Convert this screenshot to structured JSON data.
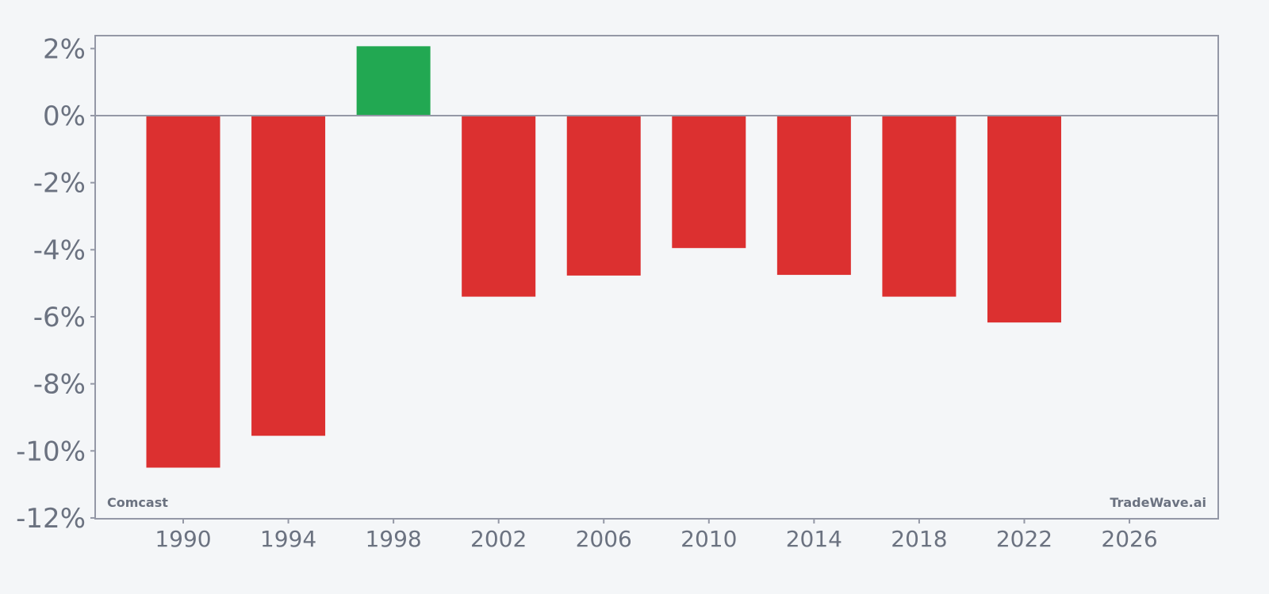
{
  "chart_data": {
    "type": "bar",
    "title": "",
    "xlabel": "",
    "ylabel": "",
    "x": [
      1990,
      1994,
      1998,
      2002,
      2006,
      2010,
      2014,
      2018,
      2022
    ],
    "values": [
      -10.5,
      -9.55,
      2.07,
      -5.4,
      -4.77,
      -3.95,
      -4.75,
      -5.4,
      -6.17
    ],
    "xlim": [
      1986.75,
      2029.5
    ],
    "ylim": [
      -12,
      2.4
    ],
    "xticks": [
      1990,
      1994,
      1998,
      2002,
      2006,
      2010,
      2014,
      2018,
      2022,
      2026
    ],
    "yticks": [
      2,
      0,
      -2,
      -4,
      -6,
      -8,
      -10,
      -12
    ],
    "ytick_labels": [
      "2%",
      "0%",
      "-2%",
      "-4%",
      "-6%",
      "-8%",
      "-10%",
      "-12%"
    ],
    "xtick_labels": [
      "1990",
      "1994",
      "1998",
      "2002",
      "2006",
      "2010",
      "2014",
      "2018",
      "2022",
      "2026"
    ],
    "grid": false,
    "annotations": {
      "company": "Comcast",
      "watermark": "TradeWave.ai"
    },
    "colors": {
      "positive": "#22a852",
      "negative": "#dc3030",
      "axis": "#9498a6",
      "text": "#6b7280",
      "background": "#f4f6f8"
    }
  }
}
